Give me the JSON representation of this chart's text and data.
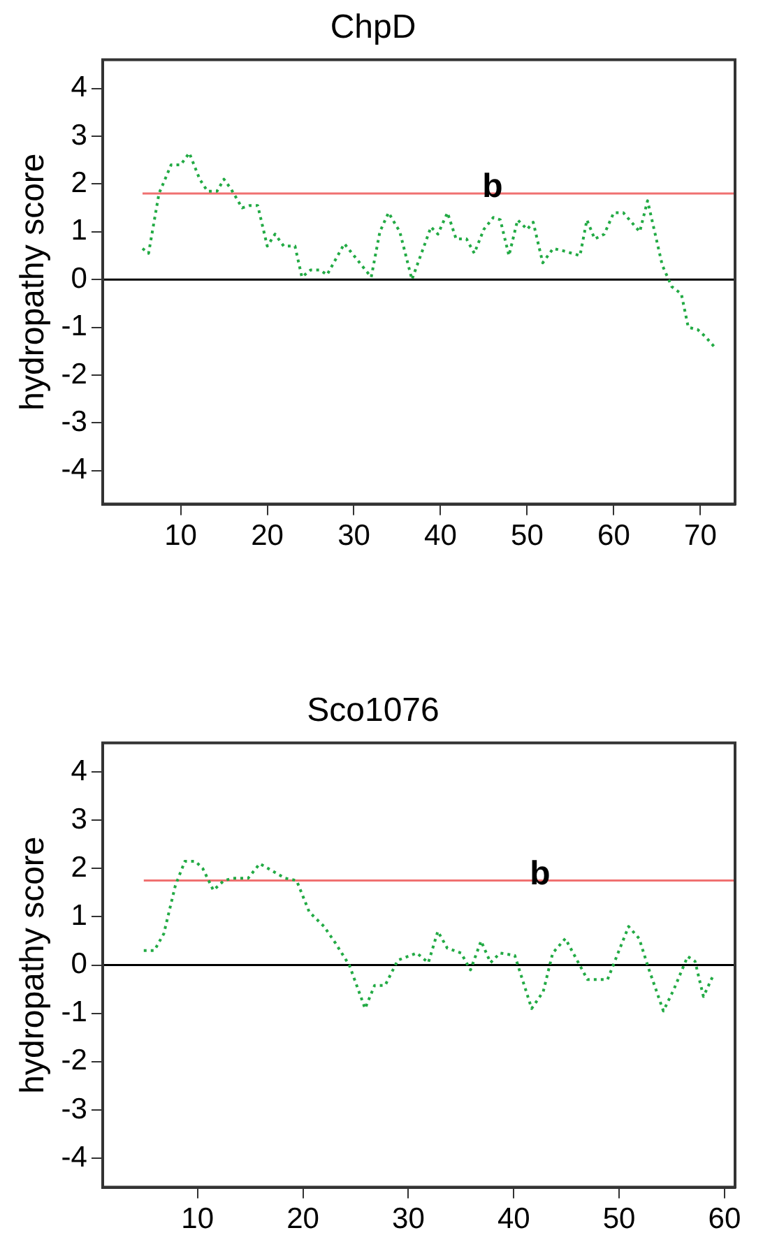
{
  "chart_data": [
    {
      "type": "line",
      "title": "ChpD",
      "ylabel": "hydropathy score",
      "xlim": [
        1,
        74
      ],
      "xticks": [
        10,
        20,
        30,
        40,
        50,
        60,
        70
      ],
      "ylim": [
        -4.7,
        4.6
      ],
      "yticks": [
        -4,
        -3,
        -2,
        -1,
        0,
        1,
        2,
        3,
        4
      ],
      "grid": false,
      "legend": false,
      "marker": "none",
      "line_style": "dotted",
      "series": [
        {
          "color": "#22aa44",
          "x": [
            5.6,
            6.3,
            7.5,
            8.9,
            10,
            11,
            12.2,
            13.1,
            14.2,
            15,
            15.8,
            17.1,
            18,
            18.9,
            20,
            20.9,
            21.9,
            23.2,
            24,
            25,
            26.1,
            26.9,
            28.9,
            32,
            33,
            34,
            35.3,
            36.7,
            38.9,
            39.7,
            40.8,
            41.8,
            43,
            43.9,
            45,
            46.1,
            46.9,
            47.9,
            48.9,
            50,
            50.7,
            51.8,
            53,
            54.2,
            56.1,
            56.9,
            57.8,
            58.9,
            60,
            61.1,
            63,
            63.9,
            65.6,
            66.7,
            67.8,
            68.6,
            69.7,
            70.6,
            71.8
          ],
          "values": [
            0.65,
            0.55,
            1.8,
            2.4,
            2.4,
            2.65,
            2.1,
            1.85,
            1.85,
            2.1,
            1.9,
            1.5,
            1.55,
            1.55,
            0.7,
            0.95,
            0.7,
            0.7,
            0.05,
            0.2,
            0.2,
            0.1,
            0.75,
            0.05,
            1.0,
            1.4,
            1.0,
            0.0,
            1.1,
            0.95,
            1.4,
            0.85,
            0.85,
            0.55,
            1.05,
            1.3,
            1.25,
            0.5,
            1.25,
            1.05,
            1.2,
            0.35,
            0.65,
            0.6,
            0.5,
            1.25,
            0.85,
            0.95,
            1.4,
            1.4,
            1.0,
            1.65,
            0.3,
            -0.15,
            -0.3,
            -1.0,
            -1.05,
            -1.2,
            -1.45
          ]
        }
      ],
      "ref_lines": [
        {
          "axis": "y",
          "value": 1.8,
          "color": "#f07070"
        },
        {
          "axis": "y",
          "value": 0,
          "color": "#000000"
        }
      ],
      "annotations": [
        {
          "text": "b",
          "x": 46,
          "y": 1.8
        }
      ]
    },
    {
      "type": "line",
      "title": "Sco1076",
      "ylabel": "hydropathy score",
      "xlim": [
        1,
        61
      ],
      "xticks": [
        10,
        20,
        30,
        40,
        50,
        60
      ],
      "ylim": [
        -4.6,
        4.6
      ],
      "yticks": [
        -4,
        -3,
        -2,
        -1,
        0,
        1,
        2,
        3,
        4
      ],
      "grid": false,
      "legend": false,
      "marker": "none",
      "line_style": "dotted",
      "series": [
        {
          "color": "#22aa44",
          "x": [
            4.9,
            5.9,
            6.8,
            7.9,
            8.8,
            9.8,
            10.5,
            11.5,
            12.5,
            13.4,
            14.8,
            15.9,
            17.1,
            18.3,
            19.4,
            20.6,
            22,
            23.1,
            24.4,
            25.9,
            26.8,
            27.8,
            29,
            30.8,
            31.9,
            32.8,
            33.7,
            35,
            35.9,
            36.9,
            37.8,
            38.7,
            40.1,
            41.7,
            42.8,
            43.7,
            44.9,
            47,
            48.9,
            50.9,
            51.9,
            52.8,
            54.2,
            55.2,
            56.5,
            57.2,
            58,
            59
          ],
          "values": [
            0.3,
            0.3,
            0.65,
            1.65,
            2.15,
            2.15,
            2.0,
            1.55,
            1.75,
            1.8,
            1.8,
            2.1,
            1.95,
            1.8,
            1.75,
            1.1,
            0.8,
            0.45,
            0.0,
            -0.9,
            -0.42,
            -0.42,
            0.1,
            0.25,
            0.05,
            0.7,
            0.35,
            0.25,
            -0.1,
            0.5,
            0.05,
            0.25,
            0.2,
            -0.9,
            -0.55,
            0.25,
            0.55,
            -0.3,
            -0.3,
            0.8,
            0.55,
            -0.07,
            -0.95,
            -0.5,
            0.18,
            0.08,
            -0.65,
            -0.18
          ]
        }
      ],
      "ref_lines": [
        {
          "axis": "y",
          "value": 1.75,
          "color": "#f07070"
        },
        {
          "axis": "y",
          "value": 0,
          "color": "#000000"
        }
      ],
      "annotations": [
        {
          "text": "b",
          "x": 42.5,
          "y": 1.75
        }
      ]
    }
  ]
}
